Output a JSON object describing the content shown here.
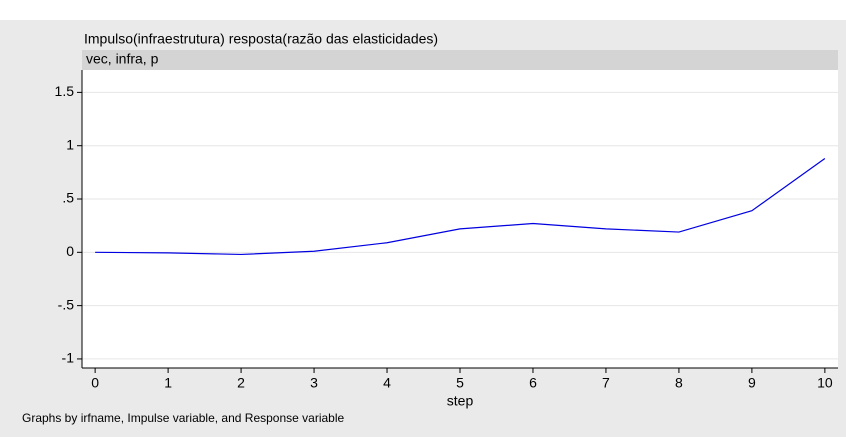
{
  "chart_data": {
    "type": "line",
    "header": "Impulso(infraestrutura) resposta(razão das elasticidades)",
    "strip": "vec, infra, p",
    "xlabel": "step",
    "note": "Graphs by irfname, Impulse variable, and Response variable",
    "x": [
      0,
      1,
      2,
      3,
      4,
      5,
      6,
      7,
      8,
      9,
      10
    ],
    "series": [
      {
        "color": "#0000e0",
        "values": [
          0,
          -0.005,
          -0.02,
          0.01,
          0.09,
          0.22,
          0.27,
          0.22,
          0.19,
          0.39,
          0.88
        ]
      }
    ],
    "xlim": [
      -0.18,
      10.18
    ],
    "xticks": [
      0,
      1,
      2,
      3,
      4,
      5,
      6,
      7,
      8,
      9,
      10
    ],
    "ylim": [
      -1.085,
      1.71
    ],
    "yticks": [
      1.5,
      1,
      {
        "value": 0.5,
        "label": ".5"
      },
      0,
      {
        "value": -0.5,
        "label": "-.5"
      },
      -1
    ],
    "grid": true
  }
}
